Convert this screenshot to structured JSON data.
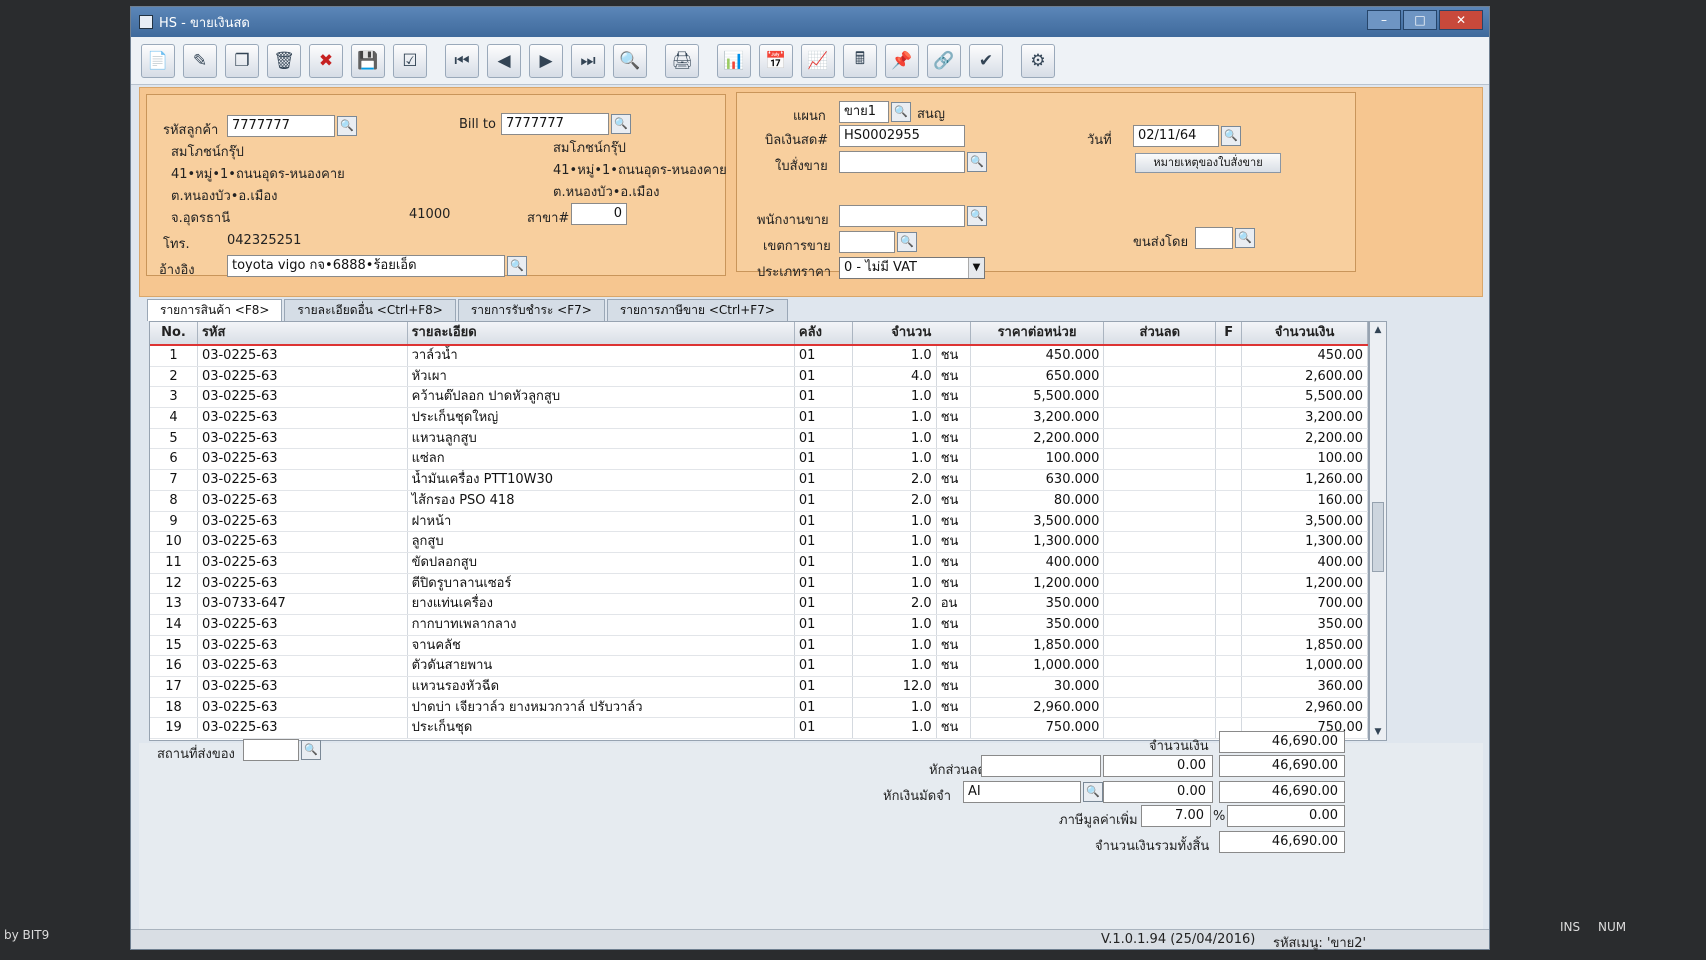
{
  "window": {
    "title": "HS - ขายเงินสด"
  },
  "customer": {
    "code_label": "รหัสลูกค้า",
    "code": "7777777",
    "name": "สมโภชน์กรุ๊ป",
    "addr1": "41•หมู่•1•ถนนอุดร-หนองคาย",
    "addr2": "ต.หนองบัว•อ.เมือง",
    "addr3": "จ.อุดรธานี",
    "zip": "41000",
    "tel_label": "โทร.",
    "tel": "042325251",
    "ref_label": "อ้างอิง",
    "ref": "toyota vigo กจ•6888•ร้อยเอ็ด"
  },
  "billto": {
    "label": "Bill to",
    "code": "7777777",
    "name": "สมโภชน์กรุ๊ป",
    "addr1": "41•หมู่•1•ถนนอุดร-หนองคาย",
    "addr2": "ต.หนองบัว•อ.เมือง",
    "branch_label": "สาขา#",
    "branch": "0"
  },
  "doc": {
    "dept_label": "แผนก",
    "dept": "ขาย1",
    "dept_name": "สนญ",
    "bill_label": "บิลเงินสด#",
    "bill": "HS0002955",
    "order_label": "ใบสั่งขาย",
    "date_label": "วันที่",
    "date": "02/11/64",
    "order_note_button": "หมายเหตุของใบสั่งขาย",
    "sales_label": "พนักงานขาย",
    "area_label": "เขตการขาย",
    "ship_label": "ขนส่งโดย",
    "price_type_label": "ประเภทราคา",
    "price_type": "0 - ไม่มี VAT"
  },
  "tabs": [
    {
      "label": "รายการสินค้า <F8>"
    },
    {
      "label": "รายละเอียดอื่น <Ctrl+F8>"
    },
    {
      "label": "รายการรับชำระ <F7>"
    },
    {
      "label": "รายการภาษีขาย <Ctrl+F7>"
    }
  ],
  "columns": {
    "no": "No.",
    "code": "รหัส",
    "desc": "รายละเอียด",
    "wh": "คลัง",
    "qty": "จำนวน",
    "price": "ราคาต่อหน่วย",
    "disc": "ส่วนลด",
    "f": "F",
    "amt": "จำนวนเงิน"
  },
  "rows": [
    {
      "no": "1",
      "code": "03-0225-63",
      "desc": "วาล์วน้ำ",
      "wh": "01",
      "qty": "1.0",
      "unit": "ชน",
      "price": "450.000",
      "amt": "450.00"
    },
    {
      "no": "2",
      "code": "03-0225-63",
      "desc": "หัวเผา",
      "wh": "01",
      "qty": "4.0",
      "unit": "ชน",
      "price": "650.000",
      "amt": "2,600.00"
    },
    {
      "no": "3",
      "code": "03-0225-63",
      "desc": "คว้านต๊ปลอก ปาดหัวลูกสูบ",
      "wh": "01",
      "qty": "1.0",
      "unit": "ชน",
      "price": "5,500.000",
      "amt": "5,500.00"
    },
    {
      "no": "4",
      "code": "03-0225-63",
      "desc": "ประเก็นชุดใหญ่",
      "wh": "01",
      "qty": "1.0",
      "unit": "ชน",
      "price": "3,200.000",
      "amt": "3,200.00"
    },
    {
      "no": "5",
      "code": "03-0225-63",
      "desc": "แหวนลูกสูบ",
      "wh": "01",
      "qty": "1.0",
      "unit": "ชน",
      "price": "2,200.000",
      "amt": "2,200.00"
    },
    {
      "no": "6",
      "code": "03-0225-63",
      "desc": "แซ่ลก",
      "wh": "01",
      "qty": "1.0",
      "unit": "ชน",
      "price": "100.000",
      "amt": "100.00"
    },
    {
      "no": "7",
      "code": "03-0225-63",
      "desc": "น้ำมันเครื่อง PTT10W30",
      "wh": "01",
      "qty": "2.0",
      "unit": "ชน",
      "price": "630.000",
      "amt": "1,260.00"
    },
    {
      "no": "8",
      "code": "03-0225-63",
      "desc": "ไส้กรอง PSO 418",
      "wh": "01",
      "qty": "2.0",
      "unit": "ชน",
      "price": "80.000",
      "amt": "160.00"
    },
    {
      "no": "9",
      "code": "03-0225-63",
      "desc": "ฝาหน้า",
      "wh": "01",
      "qty": "1.0",
      "unit": "ชน",
      "price": "3,500.000",
      "amt": "3,500.00"
    },
    {
      "no": "10",
      "code": "03-0225-63",
      "desc": "ลูกสูบ",
      "wh": "01",
      "qty": "1.0",
      "unit": "ชน",
      "price": "1,300.000",
      "amt": "1,300.00"
    },
    {
      "no": "11",
      "code": "03-0225-63",
      "desc": "ขัดปลอกสูบ",
      "wh": "01",
      "qty": "1.0",
      "unit": "ชน",
      "price": "400.000",
      "amt": "400.00"
    },
    {
      "no": "12",
      "code": "03-0225-63",
      "desc": "ตีปิดรูบาลานเซอร์",
      "wh": "01",
      "qty": "1.0",
      "unit": "ชน",
      "price": "1,200.000",
      "amt": "1,200.00"
    },
    {
      "no": "13",
      "code": "03-0733-647",
      "desc": "ยางแท่นเครื่อง",
      "wh": "01",
      "qty": "2.0",
      "unit": "อน",
      "price": "350.000",
      "amt": "700.00"
    },
    {
      "no": "14",
      "code": "03-0225-63",
      "desc": "กากบาทเพลากลาง",
      "wh": "01",
      "qty": "1.0",
      "unit": "ชน",
      "price": "350.000",
      "amt": "350.00"
    },
    {
      "no": "15",
      "code": "03-0225-63",
      "desc": "จานคลัช",
      "wh": "01",
      "qty": "1.0",
      "unit": "ชน",
      "price": "1,850.000",
      "amt": "1,850.00"
    },
    {
      "no": "16",
      "code": "03-0225-63",
      "desc": "ตัวดันสายพาน",
      "wh": "01",
      "qty": "1.0",
      "unit": "ชน",
      "price": "1,000.000",
      "amt": "1,000.00"
    },
    {
      "no": "17",
      "code": "03-0225-63",
      "desc": "แหวนรองหัวฉีด",
      "wh": "01",
      "qty": "12.0",
      "unit": "ชน",
      "price": "30.000",
      "amt": "360.00"
    },
    {
      "no": "18",
      "code": "03-0225-63",
      "desc": "ปาดบ่า เจียวาล์ว ยางหมวกวาล์ ปรับวาล์ว",
      "wh": "01",
      "qty": "1.0",
      "unit": "ชน",
      "price": "2,960.000",
      "amt": "2,960.00"
    },
    {
      "no": "19",
      "code": "03-0225-63",
      "desc": "ประเก็นชุด",
      "wh": "01",
      "qty": "1.0",
      "unit": "ชน",
      "price": "750.000",
      "amt": "750.00"
    }
  ],
  "footer": {
    "ship_place_label": "สถานที่ส่งของ",
    "amount_label": "จำนวนเงิน",
    "amount": "46,690.00",
    "discount_label": "หักส่วนลด",
    "discount": "0.00",
    "after_discount": "46,690.00",
    "deposit_label": "หักเงินมัดจำ",
    "deposit_code": "AI",
    "deposit": "0.00",
    "after_deposit": "46,690.00",
    "vat_label": "ภาษีมูลค่าเพิ่ม",
    "vat_rate": "7.00",
    "vat_pct": "%",
    "vat": "0.00",
    "total_label": "จำนวนเงินรวมทั้งสิ้น",
    "total": "46,690.00"
  },
  "status": {
    "version": "V.1.0.1.94 (25/04/2016)",
    "menu": "รหัสเมนู: 'ขาย2'",
    "ins": "INS",
    "num": "NUM",
    "by": "by BIT9"
  }
}
